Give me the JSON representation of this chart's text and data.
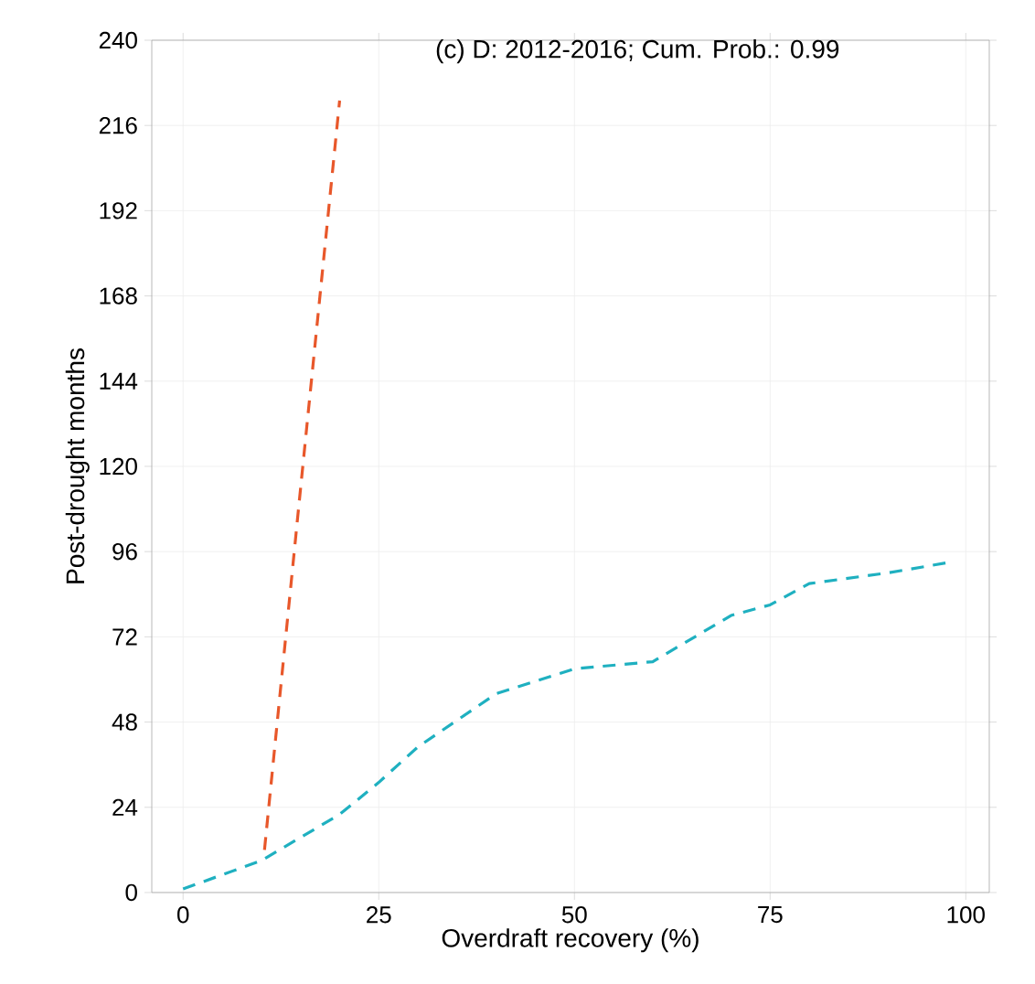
{
  "chart_data": {
    "type": "line",
    "title": "(c) D: 2012-2016;  Cum. Prob.: 0.99",
    "xlabel": "Overdraft recovery (%)",
    "ylabel": "Post-drought months",
    "xlim": [
      -4,
      103
    ],
    "ylim": [
      0,
      240
    ],
    "xticks": [
      0,
      25,
      50,
      75,
      100
    ],
    "yticks": [
      0,
      24,
      48,
      72,
      96,
      120,
      144,
      168,
      192,
      216,
      240
    ],
    "grid": true,
    "line_style": "dashed",
    "series": [
      {
        "color": "#e8572a",
        "x": [
          10.4,
          14.7,
          20
        ],
        "values": [
          12,
          107,
          223
        ]
      },
      {
        "color": "#1fb0c0",
        "x": [
          0,
          10,
          20,
          25,
          30,
          40,
          50,
          60,
          70,
          75,
          80,
          90,
          98
        ],
        "values": [
          1,
          9,
          22,
          31,
          41,
          56,
          63,
          65,
          78,
          81,
          87,
          90,
          93
        ]
      }
    ]
  }
}
